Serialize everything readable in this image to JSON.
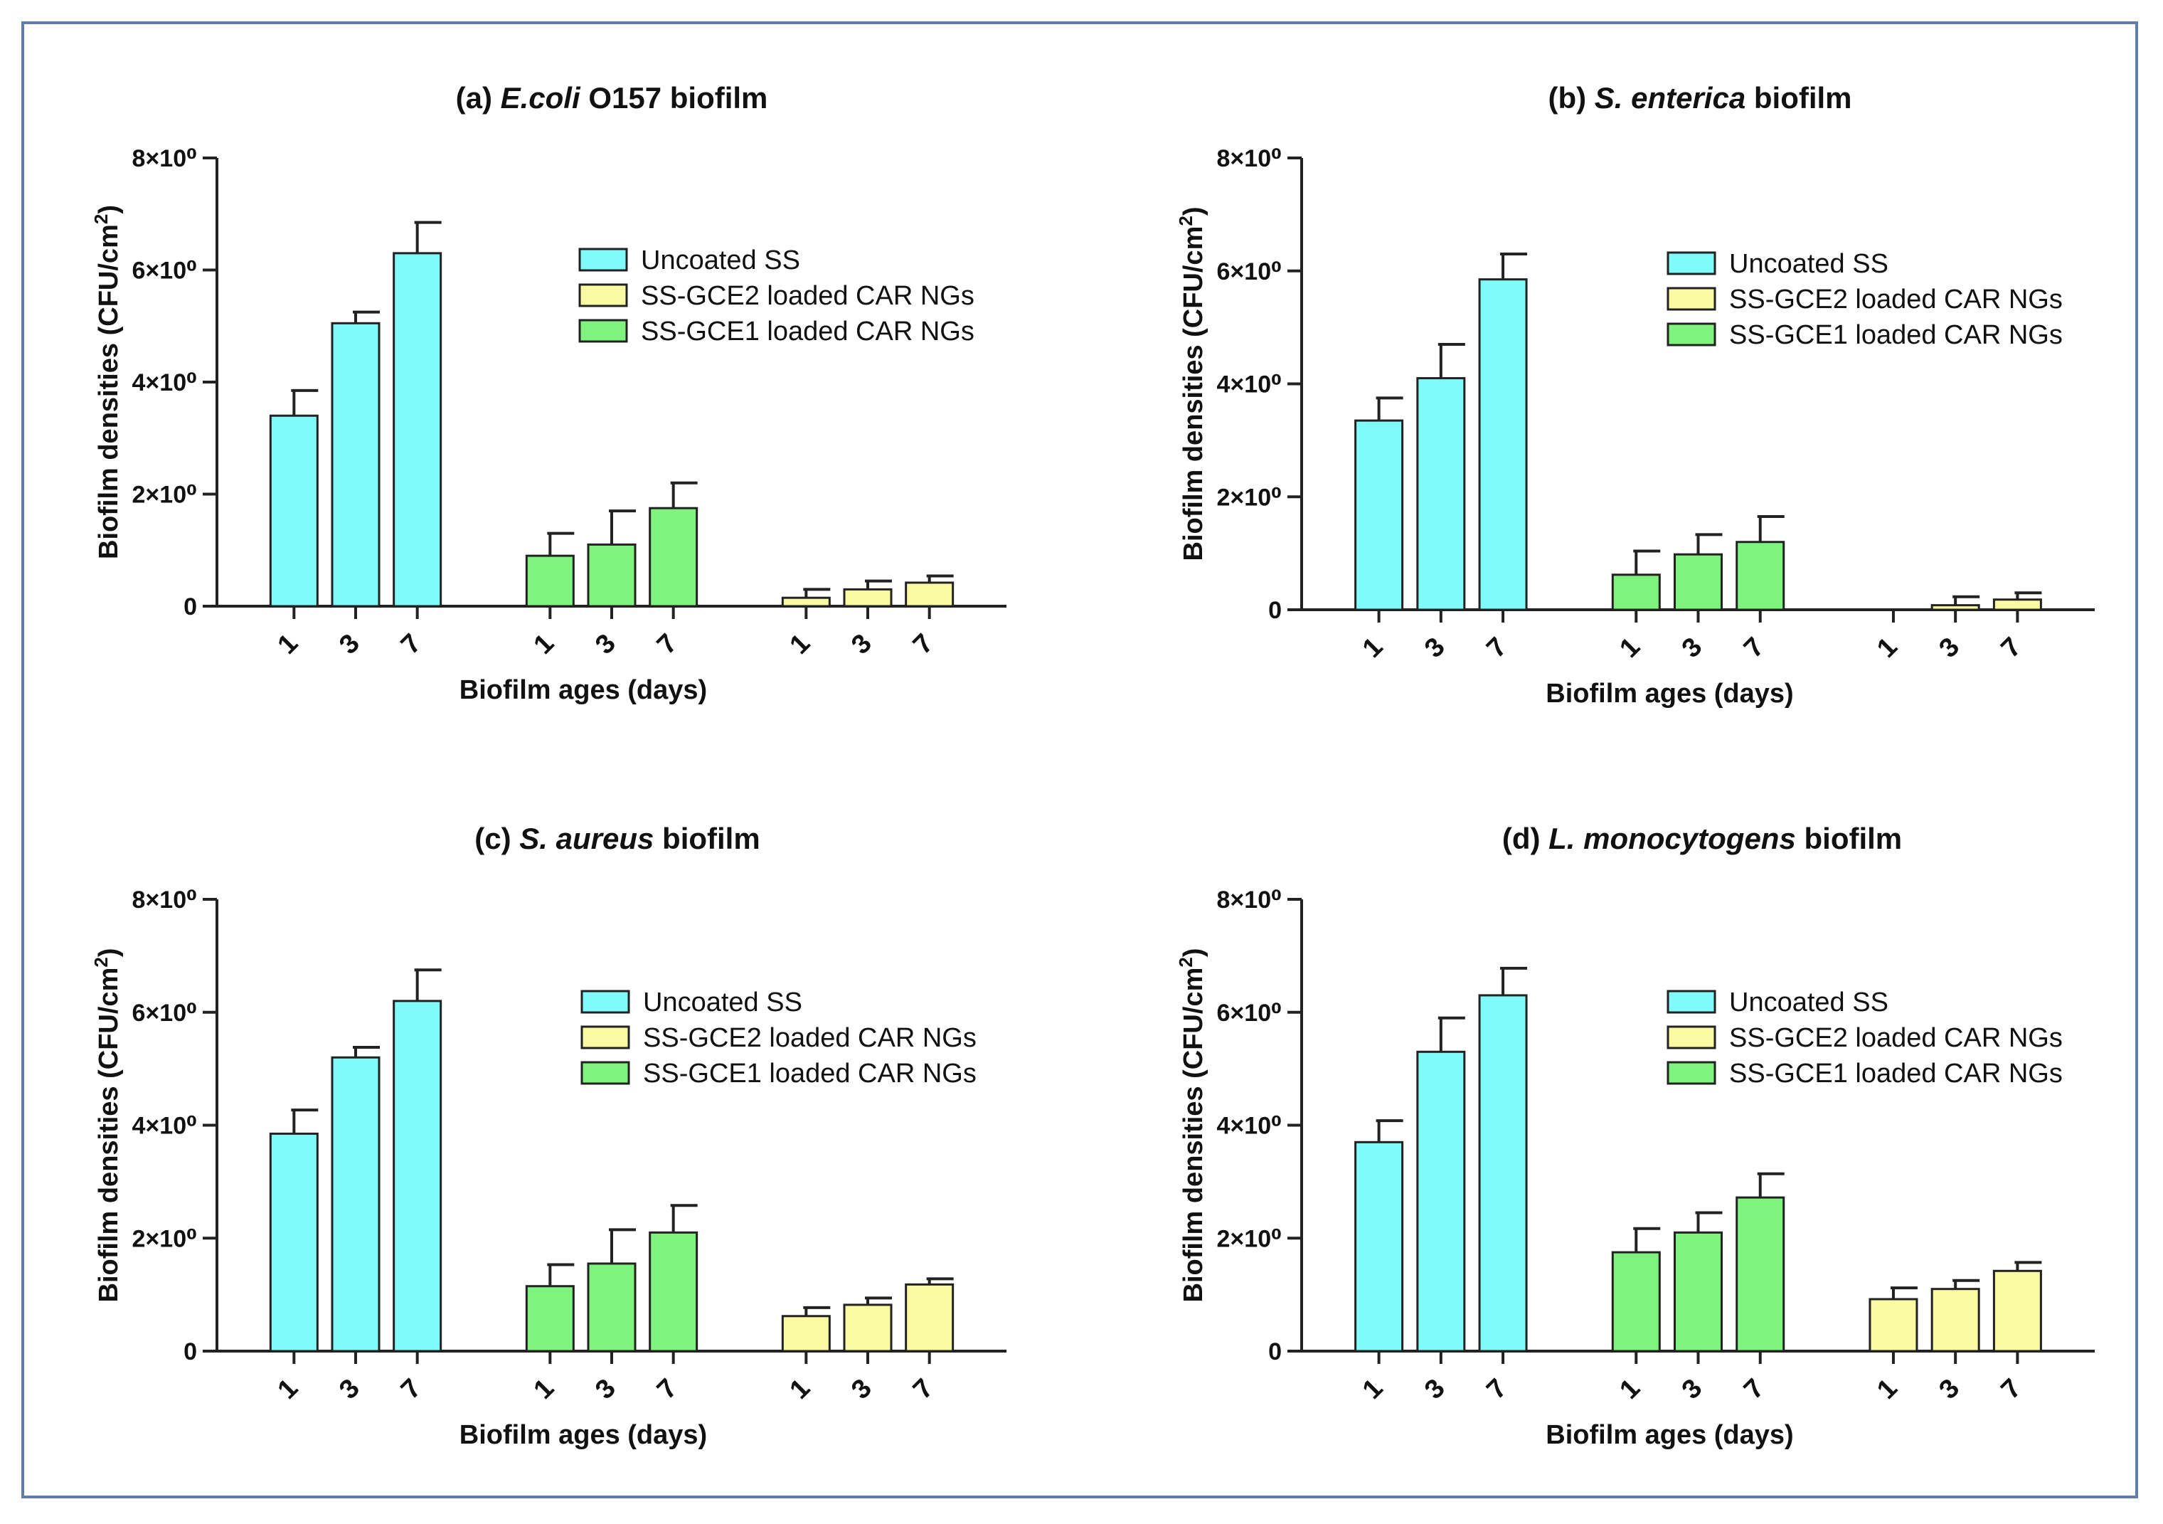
{
  "colors": {
    "uncoated": "#80fbfb",
    "gce1": "#7ef47e",
    "gce2": "#fafaa2",
    "frame": "#5f7fa6"
  },
  "legend": [
    "Uncoated SS",
    "SS-GCE2 loaded CAR NGs",
    "SS-GCE1 loaded CAR NGs"
  ],
  "chart_data": [
    {
      "type": "bar",
      "title_prefix": "(a) ",
      "title_italic": "E.coli",
      "title_suffix": " O157 biofilm",
      "xlabel": "Biofilm ages (days)",
      "ylabel_main": "Biofilm densities (CFU/cm",
      "ylabel_sup": "2",
      "ylabel_end": ")",
      "ylim": [
        0,
        8
      ],
      "yticks": [
        "0",
        "2×10⁰",
        "4×10⁰",
        "6×10⁰",
        "8×10⁰"
      ],
      "categories": [
        "1",
        "3",
        "7"
      ],
      "series": [
        {
          "name": "Uncoated SS",
          "values": [
            3.4,
            5.05,
            6.3
          ],
          "errors": [
            0.45,
            0.2,
            0.55
          ]
        },
        {
          "name": "SS-GCE1 loaded CAR NGs",
          "values": [
            0.9,
            1.1,
            1.75
          ],
          "errors": [
            0.4,
            0.6,
            0.45
          ]
        },
        {
          "name": "SS-GCE2 loaded CAR NGs",
          "values": [
            0.15,
            0.3,
            0.42
          ],
          "errors": [
            0.15,
            0.15,
            0.12
          ]
        }
      ]
    },
    {
      "type": "bar",
      "title_prefix": "(b) ",
      "title_italic": "S. enterica",
      "title_suffix": " biofilm",
      "xlabel": "Biofilm ages (days)",
      "ylabel_main": "Biofilm densities (CFU/cm",
      "ylabel_sup": "2",
      "ylabel_end": ")",
      "ylim": [
        0,
        8
      ],
      "yticks": [
        "0",
        "2×10⁰",
        "4×10⁰",
        "6×10⁰",
        "8×10⁰"
      ],
      "categories": [
        "1",
        "3",
        "7"
      ],
      "series": [
        {
          "name": "Uncoated SS",
          "values": [
            3.35,
            4.1,
            5.85
          ],
          "errors": [
            0.4,
            0.6,
            0.45
          ]
        },
        {
          "name": "SS-GCE1 loaded CAR NGs",
          "values": [
            0.62,
            0.98,
            1.2
          ],
          "errors": [
            0.42,
            0.35,
            0.45
          ]
        },
        {
          "name": "SS-GCE2 loaded CAR NGs",
          "values": [
            0,
            0.08,
            0.18
          ],
          "errors": [
            0,
            0.15,
            0.12
          ]
        }
      ]
    },
    {
      "type": "bar",
      "title_prefix": "(c) ",
      "title_italic": "S. aureus",
      "title_suffix": " biofilm",
      "xlabel": "Biofilm ages (days)",
      "ylabel_main": "Biofilm densities (CFU/cm",
      "ylabel_sup": "2",
      "ylabel_end": ")",
      "ylim": [
        0,
        8
      ],
      "yticks": [
        "0",
        "2×10⁰",
        "4×10⁰",
        "6×10⁰",
        "8×10⁰"
      ],
      "categories": [
        "1",
        "3",
        "7"
      ],
      "series": [
        {
          "name": "Uncoated SS",
          "values": [
            3.85,
            5.2,
            6.2
          ],
          "errors": [
            0.42,
            0.18,
            0.55
          ]
        },
        {
          "name": "SS-GCE1 loaded CAR NGs",
          "values": [
            1.15,
            1.55,
            2.1
          ],
          "errors": [
            0.38,
            0.6,
            0.48
          ]
        },
        {
          "name": "SS-GCE2 loaded CAR NGs",
          "values": [
            0.62,
            0.82,
            1.18
          ],
          "errors": [
            0.15,
            0.12,
            0.1
          ]
        }
      ]
    },
    {
      "type": "bar",
      "title_prefix": "(d) ",
      "title_italic": "L. monocytogens",
      "title_suffix": " biofilm",
      "xlabel": "Biofilm ages (days)",
      "ylabel_main": "Biofilm densities (CFU/cm",
      "ylabel_sup": "2",
      "ylabel_end": ")",
      "ylim": [
        0,
        8
      ],
      "yticks": [
        "0",
        "2×10⁰",
        "4×10⁰",
        "6×10⁰",
        "8×10⁰"
      ],
      "categories": [
        "1",
        "3",
        "7"
      ],
      "series": [
        {
          "name": "Uncoated SS",
          "values": [
            3.7,
            5.3,
            6.3
          ],
          "errors": [
            0.38,
            0.6,
            0.48
          ]
        },
        {
          "name": "SS-GCE1 loaded CAR NGs",
          "values": [
            1.75,
            2.1,
            2.72
          ],
          "errors": [
            0.42,
            0.35,
            0.42
          ]
        },
        {
          "name": "SS-GCE2 loaded CAR NGs",
          "values": [
            0.92,
            1.1,
            1.42
          ],
          "errors": [
            0.2,
            0.15,
            0.15
          ]
        }
      ]
    }
  ]
}
